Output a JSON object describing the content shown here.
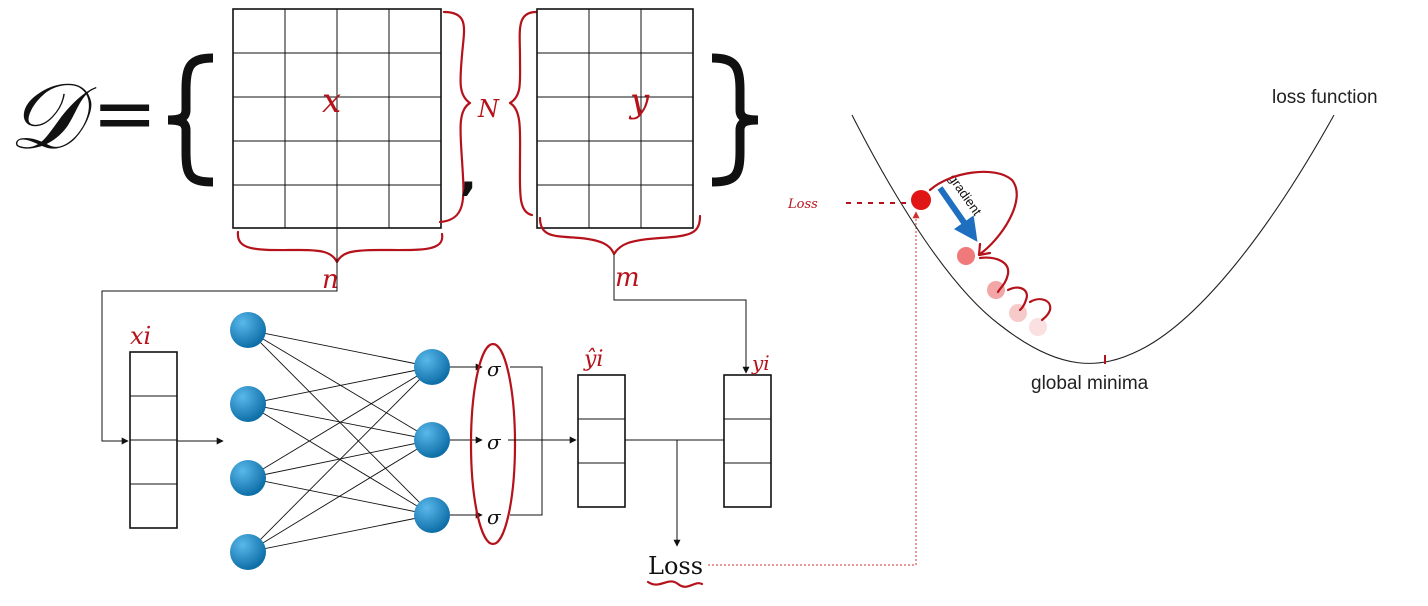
{
  "dataset": {
    "symbol": "𝒟",
    "equals": "=",
    "open_brace": "{",
    "close_brace": "}",
    "comma": ",",
    "x_matrix_label": "x",
    "y_matrix_label": "y",
    "rows_label": "N",
    "x_cols_label": "n",
    "y_cols_label": "m"
  },
  "network": {
    "input_vector_label": "xi",
    "prediction_label": "ŷi",
    "target_label": "yi",
    "activation_symbol": "σ",
    "loss_label": "Loss",
    "input_nodes": 4,
    "output_nodes": 3,
    "node_color": "#1a86c6"
  },
  "loss_plot": {
    "curve_label": "loss function",
    "minimum_label": "global minima",
    "loss_marker_label": "Loss",
    "gradient_label": "gradient",
    "arrow_color": "#1f6fc0",
    "point_color": "#e01515"
  },
  "colors": {
    "annotation": "#b5121b",
    "line": "#111111"
  }
}
